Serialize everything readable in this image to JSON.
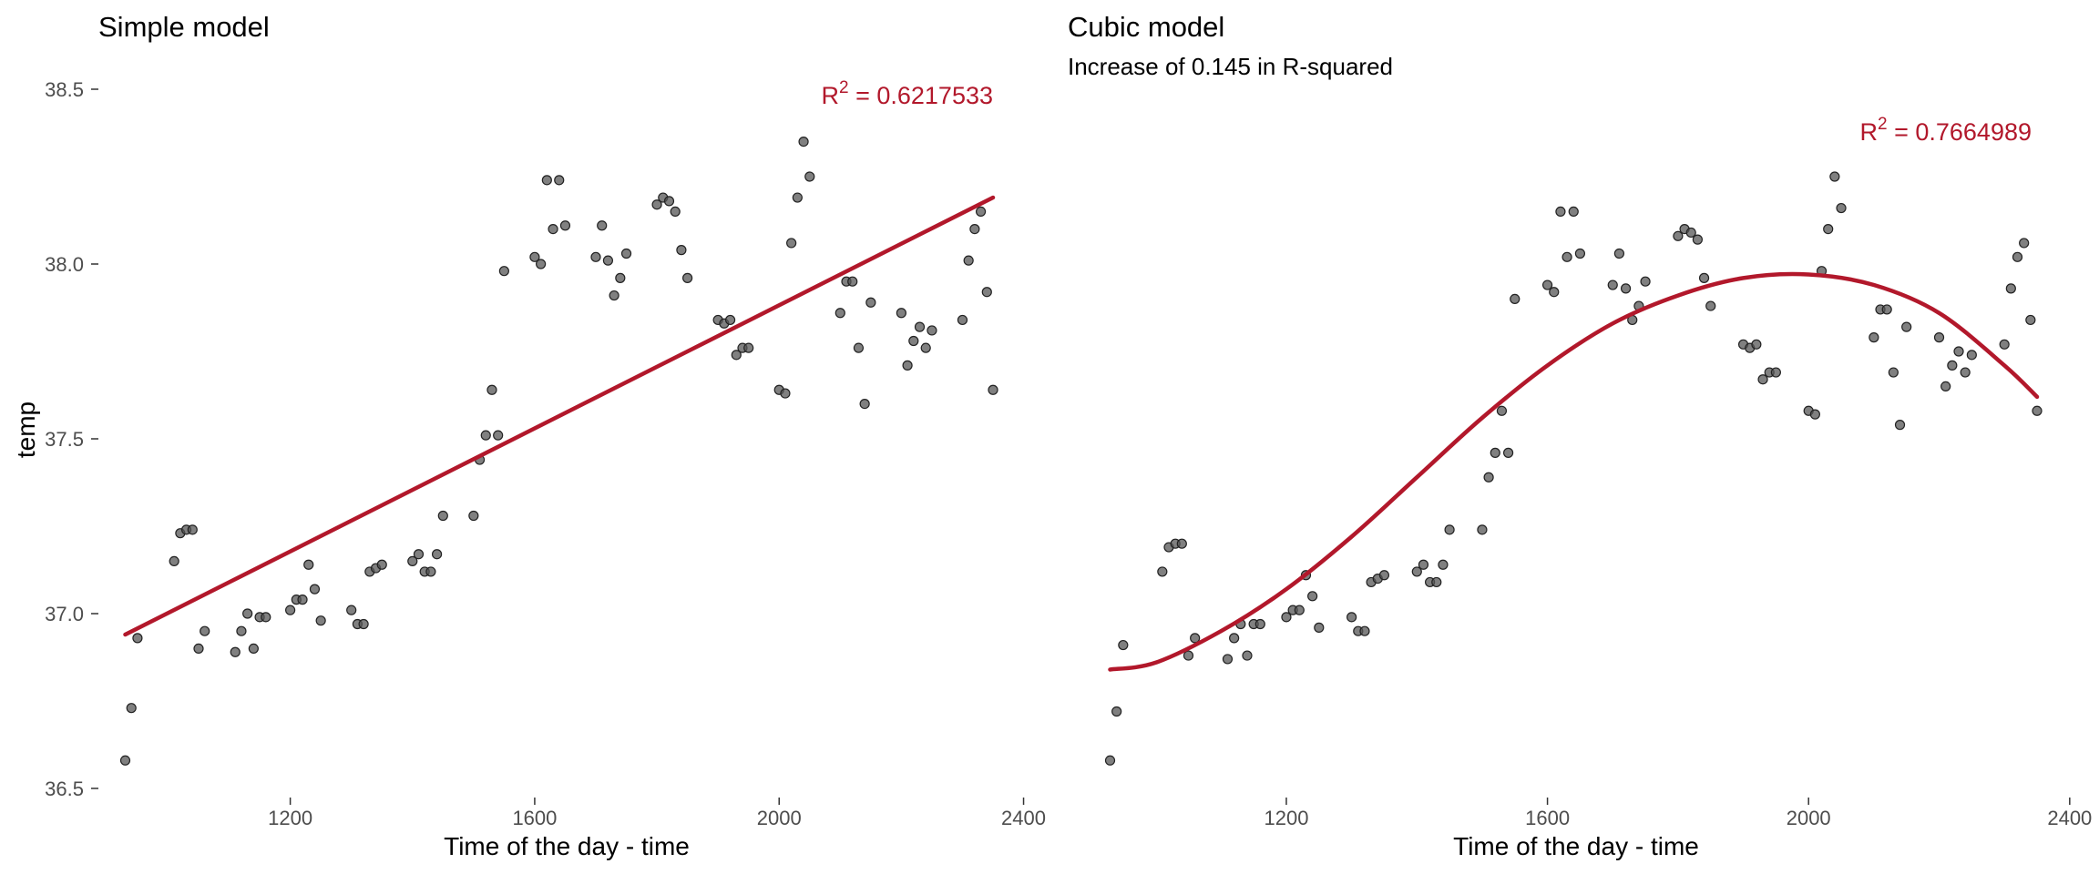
{
  "colors": {
    "fit": "#b2182b",
    "points": "#555555",
    "axis_text": "#4d4d4d"
  },
  "chart_data": [
    {
      "type": "scatter",
      "title": "Simple model",
      "subtitle": "",
      "xlabel": "Time of the day - time",
      "ylabel": "temp",
      "xlim": [
        930,
        2350
      ],
      "ylim": [
        36.5,
        38.5
      ],
      "x_ticks": [
        "1200",
        "1600",
        "2000",
        "2400"
      ],
      "y_ticks": [
        "36.5",
        "37.0",
        "37.5",
        "38.0",
        "38.5"
      ],
      "grid": false,
      "annotation": {
        "text_prefix": "R",
        "sup": "2",
        "text_value": " = 0.6217533"
      },
      "fit": {
        "model": "linear",
        "x": [
          930,
          2350
        ],
        "y": [
          36.94,
          38.19
        ]
      },
      "points": [
        {
          "x": 930,
          "y": 36.58
        },
        {
          "x": 940,
          "y": 36.73
        },
        {
          "x": 950,
          "y": 36.93
        },
        {
          "x": 1010,
          "y": 37.15
        },
        {
          "x": 1020,
          "y": 37.23
        },
        {
          "x": 1030,
          "y": 37.24
        },
        {
          "x": 1040,
          "y": 37.24
        },
        {
          "x": 1050,
          "y": 36.9
        },
        {
          "x": 1060,
          "y": 36.95
        },
        {
          "x": 1110,
          "y": 36.89
        },
        {
          "x": 1120,
          "y": 36.95
        },
        {
          "x": 1130,
          "y": 37.0
        },
        {
          "x": 1140,
          "y": 36.9
        },
        {
          "x": 1150,
          "y": 36.99
        },
        {
          "x": 1160,
          "y": 36.99
        },
        {
          "x": 1200,
          "y": 37.01
        },
        {
          "x": 1210,
          "y": 37.04
        },
        {
          "x": 1220,
          "y": 37.04
        },
        {
          "x": 1230,
          "y": 37.14
        },
        {
          "x": 1240,
          "y": 37.07
        },
        {
          "x": 1250,
          "y": 36.98
        },
        {
          "x": 1300,
          "y": 37.01
        },
        {
          "x": 1310,
          "y": 36.97
        },
        {
          "x": 1320,
          "y": 36.97
        },
        {
          "x": 1330,
          "y": 37.12
        },
        {
          "x": 1340,
          "y": 37.13
        },
        {
          "x": 1350,
          "y": 37.14
        },
        {
          "x": 1400,
          "y": 37.15
        },
        {
          "x": 1410,
          "y": 37.17
        },
        {
          "x": 1420,
          "y": 37.12
        },
        {
          "x": 1430,
          "y": 37.12
        },
        {
          "x": 1440,
          "y": 37.17
        },
        {
          "x": 1450,
          "y": 37.28
        },
        {
          "x": 1500,
          "y": 37.28
        },
        {
          "x": 1510,
          "y": 37.44
        },
        {
          "x": 1520,
          "y": 37.51
        },
        {
          "x": 1530,
          "y": 37.64
        },
        {
          "x": 1540,
          "y": 37.51
        },
        {
          "x": 1550,
          "y": 37.98
        },
        {
          "x": 1600,
          "y": 38.02
        },
        {
          "x": 1610,
          "y": 38.0
        },
        {
          "x": 1620,
          "y": 38.24
        },
        {
          "x": 1630,
          "y": 38.1
        },
        {
          "x": 1640,
          "y": 38.24
        },
        {
          "x": 1650,
          "y": 38.11
        },
        {
          "x": 1700,
          "y": 38.02
        },
        {
          "x": 1710,
          "y": 38.11
        },
        {
          "x": 1720,
          "y": 38.01
        },
        {
          "x": 1730,
          "y": 37.91
        },
        {
          "x": 1740,
          "y": 37.96
        },
        {
          "x": 1750,
          "y": 38.03
        },
        {
          "x": 1800,
          "y": 38.17
        },
        {
          "x": 1810,
          "y": 38.19
        },
        {
          "x": 1820,
          "y": 38.18
        },
        {
          "x": 1830,
          "y": 38.15
        },
        {
          "x": 1840,
          "y": 38.04
        },
        {
          "x": 1850,
          "y": 37.96
        },
        {
          "x": 1900,
          "y": 37.84
        },
        {
          "x": 1910,
          "y": 37.83
        },
        {
          "x": 1920,
          "y": 37.84
        },
        {
          "x": 1930,
          "y": 37.74
        },
        {
          "x": 1940,
          "y": 37.76
        },
        {
          "x": 1950,
          "y": 37.76
        },
        {
          "x": 2000,
          "y": 37.64
        },
        {
          "x": 2010,
          "y": 37.63
        },
        {
          "x": 2020,
          "y": 38.06
        },
        {
          "x": 2030,
          "y": 38.19
        },
        {
          "x": 2040,
          "y": 38.35
        },
        {
          "x": 2050,
          "y": 38.25
        },
        {
          "x": 2100,
          "y": 37.86
        },
        {
          "x": 2110,
          "y": 37.95
        },
        {
          "x": 2120,
          "y": 37.95
        },
        {
          "x": 2130,
          "y": 37.76
        },
        {
          "x": 2140,
          "y": 37.6
        },
        {
          "x": 2150,
          "y": 37.89
        },
        {
          "x": 2200,
          "y": 37.86
        },
        {
          "x": 2210,
          "y": 37.71
        },
        {
          "x": 2220,
          "y": 37.78
        },
        {
          "x": 2230,
          "y": 37.82
        },
        {
          "x": 2240,
          "y": 37.76
        },
        {
          "x": 2250,
          "y": 37.81
        },
        {
          "x": 2300,
          "y": 37.84
        },
        {
          "x": 2310,
          "y": 38.01
        },
        {
          "x": 2320,
          "y": 38.1
        },
        {
          "x": 2330,
          "y": 38.15
        },
        {
          "x": 2340,
          "y": 37.92
        },
        {
          "x": 2350,
          "y": 37.64
        }
      ]
    },
    {
      "type": "scatter",
      "title": "Cubic model",
      "subtitle": "Increase of 0.145 in R-squared",
      "xlabel": "Time of the day - time",
      "ylabel": "",
      "xlim": [
        930,
        2350
      ],
      "ylim": [
        36.5,
        38.5
      ],
      "x_ticks": [
        "1200",
        "1600",
        "2000",
        "2400"
      ],
      "y_ticks": [],
      "grid": false,
      "annotation": {
        "text_prefix": "R",
        "sup": "2",
        "text_value": " = 0.7664989"
      },
      "fit": {
        "model": "cubic",
        "x": [
          930,
          1000,
          1100,
          1200,
          1300,
          1400,
          1500,
          1600,
          1700,
          1800,
          1900,
          2000,
          2100,
          2200,
          2300,
          2350
        ],
        "y": [
          36.84,
          36.86,
          36.95,
          37.07,
          37.22,
          37.39,
          37.56,
          37.71,
          37.83,
          37.91,
          37.96,
          37.97,
          37.94,
          37.86,
          37.71,
          37.62
        ]
      },
      "points": [
        {
          "x": 930,
          "y": 36.58
        },
        {
          "x": 940,
          "y": 36.72
        },
        {
          "x": 950,
          "y": 36.91
        },
        {
          "x": 1010,
          "y": 37.12
        },
        {
          "x": 1020,
          "y": 37.19
        },
        {
          "x": 1030,
          "y": 37.2
        },
        {
          "x": 1040,
          "y": 37.2
        },
        {
          "x": 1050,
          "y": 36.88
        },
        {
          "x": 1060,
          "y": 36.93
        },
        {
          "x": 1110,
          "y": 36.87
        },
        {
          "x": 1120,
          "y": 36.93
        },
        {
          "x": 1130,
          "y": 36.97
        },
        {
          "x": 1140,
          "y": 36.88
        },
        {
          "x": 1150,
          "y": 36.97
        },
        {
          "x": 1160,
          "y": 36.97
        },
        {
          "x": 1200,
          "y": 36.99
        },
        {
          "x": 1210,
          "y": 37.01
        },
        {
          "x": 1220,
          "y": 37.01
        },
        {
          "x": 1230,
          "y": 37.11
        },
        {
          "x": 1240,
          "y": 37.05
        },
        {
          "x": 1250,
          "y": 36.96
        },
        {
          "x": 1300,
          "y": 36.99
        },
        {
          "x": 1310,
          "y": 36.95
        },
        {
          "x": 1320,
          "y": 36.95
        },
        {
          "x": 1330,
          "y": 37.09
        },
        {
          "x": 1340,
          "y": 37.1
        },
        {
          "x": 1350,
          "y": 37.11
        },
        {
          "x": 1400,
          "y": 37.12
        },
        {
          "x": 1410,
          "y": 37.14
        },
        {
          "x": 1420,
          "y": 37.09
        },
        {
          "x": 1430,
          "y": 37.09
        },
        {
          "x": 1440,
          "y": 37.14
        },
        {
          "x": 1450,
          "y": 37.24
        },
        {
          "x": 1500,
          "y": 37.24
        },
        {
          "x": 1510,
          "y": 37.39
        },
        {
          "x": 1520,
          "y": 37.46
        },
        {
          "x": 1530,
          "y": 37.58
        },
        {
          "x": 1540,
          "y": 37.46
        },
        {
          "x": 1550,
          "y": 37.9
        },
        {
          "x": 1600,
          "y": 37.94
        },
        {
          "x": 1610,
          "y": 37.92
        },
        {
          "x": 1620,
          "y": 38.15
        },
        {
          "x": 1630,
          "y": 38.02
        },
        {
          "x": 1640,
          "y": 38.15
        },
        {
          "x": 1650,
          "y": 38.03
        },
        {
          "x": 1700,
          "y": 37.94
        },
        {
          "x": 1710,
          "y": 38.03
        },
        {
          "x": 1720,
          "y": 37.93
        },
        {
          "x": 1730,
          "y": 37.84
        },
        {
          "x": 1740,
          "y": 37.88
        },
        {
          "x": 1750,
          "y": 37.95
        },
        {
          "x": 1800,
          "y": 38.08
        },
        {
          "x": 1810,
          "y": 38.1
        },
        {
          "x": 1820,
          "y": 38.09
        },
        {
          "x": 1830,
          "y": 38.07
        },
        {
          "x": 1840,
          "y": 37.96
        },
        {
          "x": 1850,
          "y": 37.88
        },
        {
          "x": 1900,
          "y": 37.77
        },
        {
          "x": 1910,
          "y": 37.76
        },
        {
          "x": 1920,
          "y": 37.77
        },
        {
          "x": 1930,
          "y": 37.67
        },
        {
          "x": 1940,
          "y": 37.69
        },
        {
          "x": 1950,
          "y": 37.69
        },
        {
          "x": 2000,
          "y": 37.58
        },
        {
          "x": 2010,
          "y": 37.57
        },
        {
          "x": 2020,
          "y": 37.98
        },
        {
          "x": 2030,
          "y": 38.1
        },
        {
          "x": 2040,
          "y": 38.25
        },
        {
          "x": 2050,
          "y": 38.16
        },
        {
          "x": 2100,
          "y": 37.79
        },
        {
          "x": 2110,
          "y": 37.87
        },
        {
          "x": 2120,
          "y": 37.87
        },
        {
          "x": 2130,
          "y": 37.69
        },
        {
          "x": 2140,
          "y": 37.54
        },
        {
          "x": 2150,
          "y": 37.82
        },
        {
          "x": 2200,
          "y": 37.79
        },
        {
          "x": 2210,
          "y": 37.65
        },
        {
          "x": 2220,
          "y": 37.71
        },
        {
          "x": 2230,
          "y": 37.75
        },
        {
          "x": 2240,
          "y": 37.69
        },
        {
          "x": 2250,
          "y": 37.74
        },
        {
          "x": 2300,
          "y": 37.77
        },
        {
          "x": 2310,
          "y": 37.93
        },
        {
          "x": 2320,
          "y": 38.02
        },
        {
          "x": 2330,
          "y": 38.06
        },
        {
          "x": 2340,
          "y": 37.84
        },
        {
          "x": 2350,
          "y": 37.58
        }
      ]
    }
  ]
}
